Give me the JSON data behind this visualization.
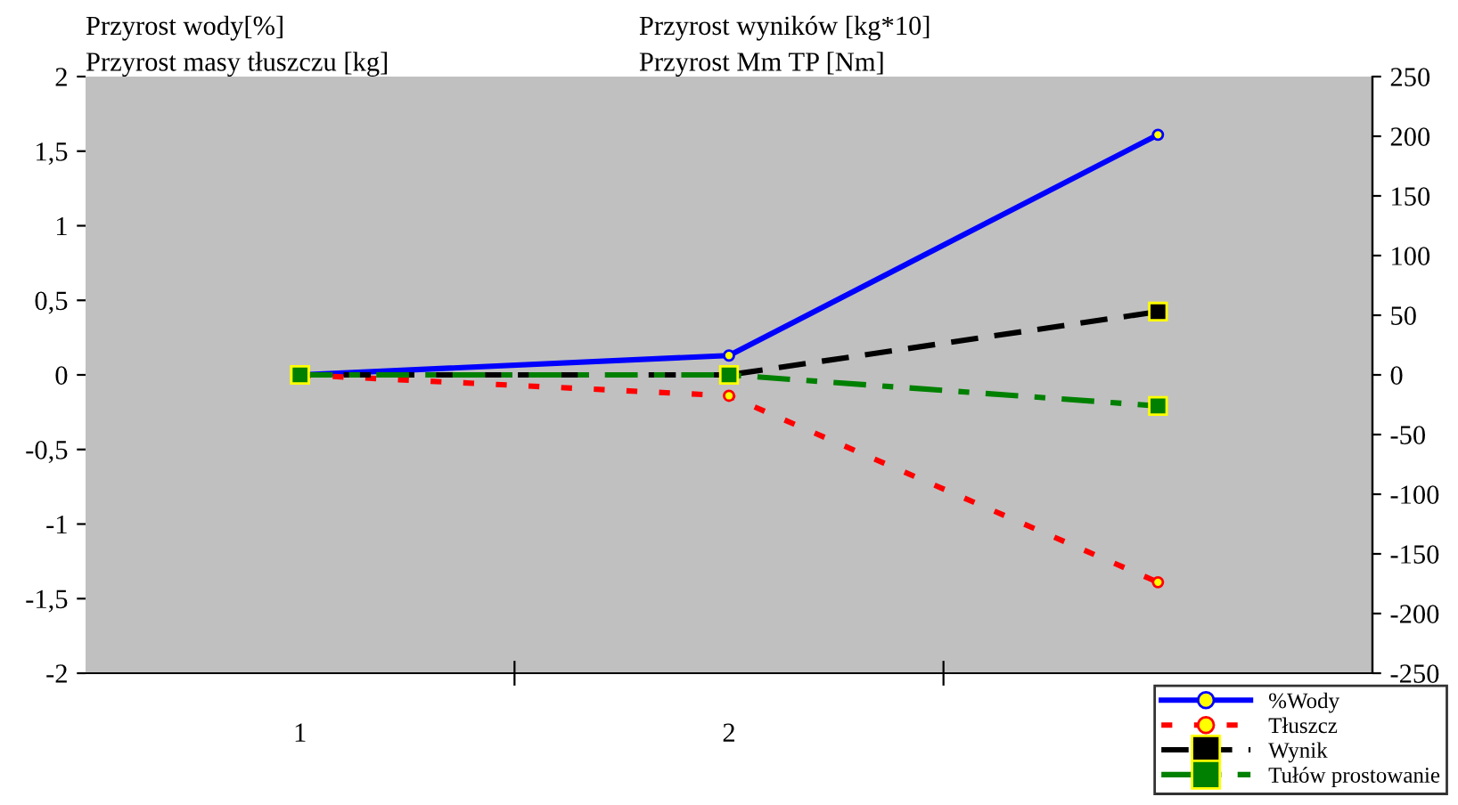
{
  "chart_data": {
    "type": "line",
    "ylabel": "Przyrost wody[%]\nPrzyrost masy tłuszczu [kg]",
    "y2label": "Przyrost wyników [kg*10]\nPrzyrost Mm TP [Nm]",
    "categories": [
      "1",
      "2",
      null
    ],
    "series": [
      {
        "name": "%Wody",
        "color": "#0000ff",
        "values": [
          0,
          0.13,
          1.61
        ],
        "marker": "circle",
        "line_style": "solid"
      },
      {
        "name": "Tłuszcz",
        "color": "#ff0000",
        "values": [
          0,
          -0.14,
          -1.39
        ],
        "marker": "circle",
        "line_style": "dotted"
      },
      {
        "name": "Wynik",
        "color": "#000000",
        "values": [
          0,
          0,
          53
        ],
        "marker": "square",
        "line_style": "dashed",
        "axis": "y2"
      },
      {
        "name": "Tułów prostowanie",
        "color": "#008000",
        "values": [
          0,
          0,
          -26
        ],
        "marker": "square",
        "line_style": "dashdot",
        "axis": "y2"
      }
    ],
    "ylim": [
      -2,
      2
    ],
    "yticks": [
      -2,
      {
        "value": -1.5,
        "label": "-1,5"
      },
      -1,
      {
        "value": -0.5,
        "label": "-0,5"
      },
      0,
      {
        "value": 0.5,
        "label": "0,5"
      },
      1,
      {
        "value": 1.5,
        "label": "1,5"
      },
      2
    ],
    "y2lim": [
      -250,
      250
    ],
    "y2ticks": [
      -250,
      -200,
      -150,
      -100,
      -50,
      0,
      50,
      100,
      150,
      200,
      250
    ],
    "grid": false,
    "legend": "bottom right"
  }
}
